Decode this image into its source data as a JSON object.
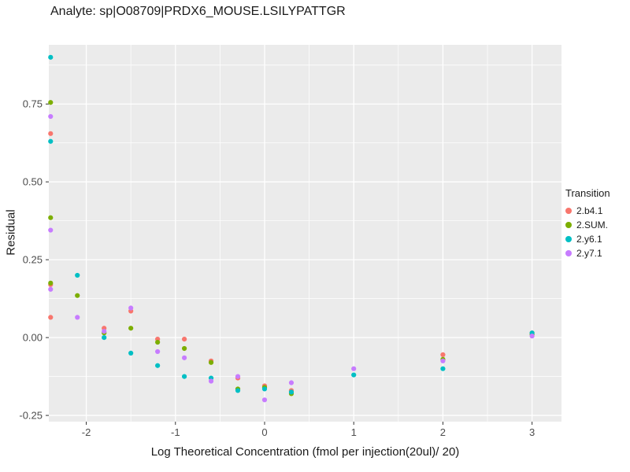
{
  "chart_data": {
    "type": "scatter",
    "title": "Analyte: sp|O08709|PRDX6_MOUSE.LSILYPATTGR",
    "xlabel": "Log Theoretical Concentration (fmol per injection(20ul)/ 20)",
    "ylabel": "Residual",
    "xlim": [
      -2.42,
      3.33
    ],
    "ylim": [
      -0.27,
      0.94
    ],
    "xticks": [
      -2,
      -1,
      0,
      1,
      2,
      3
    ],
    "xtick_labels": [
      "-2",
      "-1",
      "0",
      "1",
      "2",
      "3"
    ],
    "yticks": [
      -0.25,
      0,
      0.25,
      0.5,
      0.75
    ],
    "ytick_labels": [
      "-0.25",
      "0.00",
      "0.25",
      "0.50",
      "0.75"
    ],
    "grid": true,
    "panel_bg": "#EBEBEB",
    "grid_color": "#FFFFFF",
    "tick_color": "#333333",
    "tick_label_color": "#4D4D4D",
    "legend": {
      "title": "Transition",
      "position": "right"
    },
    "series": [
      {
        "name": "2.b4.1",
        "color": "#F8766D",
        "points": [
          [
            -2.4,
            0.655
          ],
          [
            -2.4,
            0.17
          ],
          [
            -2.4,
            0.065
          ],
          [
            -1.8,
            0.03
          ],
          [
            -1.5,
            0.085
          ],
          [
            -1.2,
            -0.005
          ],
          [
            -0.9,
            -0.005
          ],
          [
            -0.6,
            -0.075
          ],
          [
            -0.3,
            -0.13
          ],
          [
            0,
            -0.155
          ],
          [
            0.3,
            -0.17
          ],
          [
            2,
            -0.055
          ],
          [
            3,
            0.015
          ]
        ]
      },
      {
        "name": "2.SUM.",
        "color": "#7CAE00",
        "points": [
          [
            -2.4,
            0.755
          ],
          [
            -2.4,
            0.385
          ],
          [
            -2.4,
            0.175
          ],
          [
            -2.1,
            0.135
          ],
          [
            -1.8,
            0.015
          ],
          [
            -1.5,
            0.03
          ],
          [
            -1.2,
            -0.015
          ],
          [
            -0.9,
            -0.035
          ],
          [
            -0.6,
            -0.08
          ],
          [
            -0.3,
            -0.165
          ],
          [
            0,
            -0.16
          ],
          [
            0.3,
            -0.18
          ],
          [
            2,
            -0.07
          ],
          [
            3,
            0.01
          ]
        ]
      },
      {
        "name": "2.y6.1",
        "color": "#00BFC4",
        "points": [
          [
            -2.4,
            0.9
          ],
          [
            -2.4,
            0.63
          ],
          [
            -2.1,
            0.2
          ],
          [
            -1.8,
            0.0
          ],
          [
            -1.5,
            -0.05
          ],
          [
            -1.2,
            -0.09
          ],
          [
            -0.9,
            -0.125
          ],
          [
            -0.6,
            -0.13
          ],
          [
            -0.3,
            -0.17
          ],
          [
            0,
            -0.165
          ],
          [
            0.3,
            -0.175
          ],
          [
            1,
            -0.12
          ],
          [
            2,
            -0.1
          ],
          [
            3,
            0.015
          ]
        ]
      },
      {
        "name": "2.y7.1",
        "color": "#C77CFF",
        "points": [
          [
            -2.4,
            0.71
          ],
          [
            -2.4,
            0.345
          ],
          [
            -2.4,
            0.155
          ],
          [
            -2.1,
            0.065
          ],
          [
            -1.8,
            0.02
          ],
          [
            -1.5,
            0.095
          ],
          [
            -1.2,
            -0.045
          ],
          [
            -0.9,
            -0.065
          ],
          [
            -0.6,
            -0.14
          ],
          [
            -0.3,
            -0.125
          ],
          [
            0,
            -0.2
          ],
          [
            0.3,
            -0.145
          ],
          [
            1,
            -0.1
          ],
          [
            2,
            -0.075
          ],
          [
            3,
            0.005
          ]
        ]
      }
    ]
  }
}
